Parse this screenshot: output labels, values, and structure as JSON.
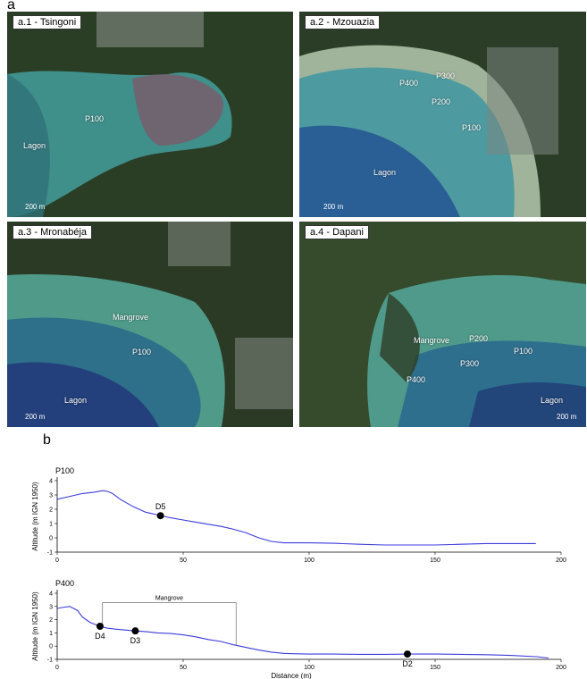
{
  "figure": {
    "panel_a_letter": "a",
    "panel_b_letter": "b"
  },
  "maps": [
    {
      "title": "a.1 - Tsingoni",
      "labels": [
        "P100",
        "Lagon"
      ],
      "scale": "200 m",
      "colors": {
        "water": "#3f8f8a",
        "land": "#2a3d25",
        "mud": "#7a5a6a"
      }
    },
    {
      "title": "a.2 - Mzouazia",
      "labels": [
        "P400",
        "P300",
        "P200",
        "P100",
        "Lagon"
      ],
      "scale": "200 m",
      "colors": {
        "water": "#3a7f9a",
        "land": "#2b3d26",
        "beach": "#9fb49a"
      }
    },
    {
      "title": "a.3 - Mronabéja",
      "labels": [
        "Mangrove",
        "P100",
        "Lagon"
      ],
      "scale": "200 m",
      "colors": {
        "water": "#2e6f8a",
        "land": "#2b3a24",
        "shallow": "#4f9a88"
      }
    },
    {
      "title": "a.4 - Dapani",
      "labels": [
        "P400",
        "P300",
        "P200",
        "P100",
        "Mangrove",
        "Lagon"
      ],
      "scale": "200 m",
      "colors": {
        "water": "#2f6f8e",
        "land": "#364a2c",
        "shallow": "#4f9a8a"
      }
    }
  ],
  "chart_data": [
    {
      "type": "line",
      "title": "P100",
      "ylabel": "Altitude (m IGN 1950)",
      "xlabel": "",
      "xlim": [
        0,
        200
      ],
      "ylim": [
        -1,
        4
      ],
      "xticks": [
        0,
        50,
        100,
        150,
        200
      ],
      "yticks": [
        -1,
        0,
        1,
        2,
        3,
        4
      ],
      "series": [
        {
          "color": "#3b3bdc",
          "x": [
            0,
            5,
            10,
            15,
            18,
            20,
            22,
            25,
            30,
            35,
            40,
            45,
            50,
            55,
            60,
            65,
            70,
            75,
            80,
            85,
            90,
            95,
            100,
            110,
            120,
            130,
            140,
            150,
            160,
            170,
            180,
            190
          ],
          "y": [
            2.7,
            2.9,
            3.1,
            3.2,
            3.3,
            3.25,
            3.1,
            2.7,
            2.2,
            1.8,
            1.6,
            1.4,
            1.25,
            1.1,
            0.95,
            0.8,
            0.6,
            0.35,
            0.0,
            -0.25,
            -0.35,
            -0.35,
            -0.35,
            -0.38,
            -0.45,
            -0.5,
            -0.5,
            -0.5,
            -0.45,
            -0.4,
            -0.4,
            -0.4
          ]
        }
      ],
      "points": [
        {
          "label": "D5",
          "x": 41,
          "y": 1.55
        }
      ]
    },
    {
      "type": "line",
      "title": "P400",
      "ylabel": "Altitude (m IGN 1950)",
      "xlabel": "Distance (m)",
      "xlim": [
        0,
        200
      ],
      "ylim": [
        -1,
        4
      ],
      "xticks": [
        0,
        50,
        100,
        150,
        200
      ],
      "yticks": [
        -1,
        0,
        1,
        2,
        3,
        4
      ],
      "series": [
        {
          "color": "#3b3bdc",
          "x": [
            0,
            3,
            5,
            8,
            10,
            13,
            17,
            20,
            25,
            31,
            35,
            40,
            45,
            50,
            55,
            60,
            65,
            70,
            75,
            80,
            85,
            90,
            95,
            100,
            110,
            120,
            130,
            140,
            150,
            160,
            170,
            180,
            190,
            195
          ],
          "y": [
            2.85,
            2.95,
            3.0,
            2.7,
            2.2,
            1.8,
            1.5,
            1.35,
            1.25,
            1.15,
            1.1,
            1.0,
            0.95,
            0.85,
            0.7,
            0.5,
            0.35,
            0.1,
            -0.1,
            -0.3,
            -0.45,
            -0.55,
            -0.58,
            -0.6,
            -0.6,
            -0.62,
            -0.62,
            -0.6,
            -0.6,
            -0.62,
            -0.65,
            -0.7,
            -0.8,
            -0.9
          ]
        }
      ],
      "points": [
        {
          "label": "D4",
          "x": 17,
          "y": 1.5
        },
        {
          "label": "D3",
          "x": 31,
          "y": 1.15
        },
        {
          "label": "D2",
          "x": 139,
          "y": -0.6
        }
      ],
      "annotation": {
        "label": "Mangrove",
        "x_start": 18,
        "x_end": 71,
        "y": 3.3
      }
    }
  ]
}
